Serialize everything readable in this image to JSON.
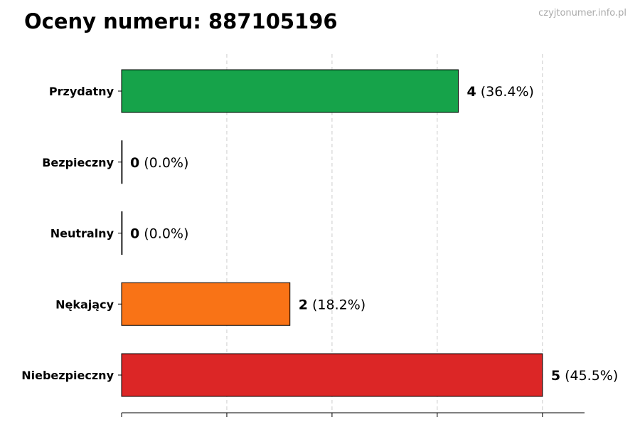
{
  "header": {
    "title": "Oceny numeru: 887105196",
    "watermark": "czyjtonumer.info.pl"
  },
  "chart_data": {
    "type": "bar",
    "orientation": "horizontal",
    "title": "Oceny numeru: 887105196",
    "xlabel": "",
    "ylabel": "",
    "xlim": [
      0,
      5.5
    ],
    "grid": true,
    "categories": [
      "Przydatny",
      "Bezpieczny",
      "Neutralny",
      "Nękający",
      "Niebezpieczny"
    ],
    "values": [
      4,
      0,
      0,
      2,
      5
    ],
    "percent_labels": [
      "(36.4%)",
      "(0.0%)",
      "(0.0%)",
      "(18.2%)",
      "(45.5%)"
    ],
    "colors": [
      "#16a34a",
      "#16a34a",
      "#9ca3af",
      "#f97316",
      "#dc2626"
    ],
    "edge_color": "#000000"
  }
}
